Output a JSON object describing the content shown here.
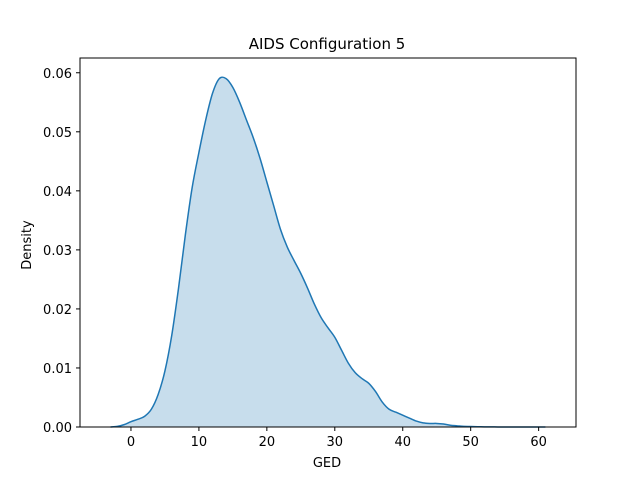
{
  "chart_data": {
    "type": "area",
    "title": "AIDS Configuration 5",
    "xlabel": "GED",
    "ylabel": "Density",
    "xlim": [
      -7.5,
      65.5
    ],
    "ylim": [
      0,
      0.0625
    ],
    "xticks": [
      0,
      10,
      20,
      30,
      40,
      50,
      60
    ],
    "yticks": [
      0.0,
      0.01,
      0.02,
      0.03,
      0.04,
      0.05,
      0.06
    ],
    "xtick_labels": [
      "0",
      "10",
      "20",
      "30",
      "40",
      "50",
      "60"
    ],
    "ytick_labels": [
      "0.00",
      "0.01",
      "0.02",
      "0.03",
      "0.04",
      "0.05",
      "0.06"
    ],
    "grid": false,
    "legend": false,
    "colors": {
      "line": "#1f77b4",
      "fill": "#1f77b4",
      "fill_opacity": 0.25
    },
    "series": [
      {
        "x": [
          -3,
          -2,
          -1,
          0,
          1,
          2,
          3,
          4,
          5,
          6,
          7,
          8,
          9,
          10,
          11,
          12,
          13,
          14,
          15,
          16,
          17,
          18,
          19,
          20,
          21,
          22,
          23,
          24,
          25,
          26,
          27,
          28,
          29,
          30,
          31,
          32,
          33,
          34,
          35,
          36,
          37,
          38,
          39,
          40,
          41,
          42,
          43,
          44,
          45,
          46,
          47,
          48,
          49,
          50,
          51,
          52,
          53,
          54,
          55,
          56,
          57,
          58,
          59,
          60,
          61
        ],
        "y": [
          0.0,
          0.0001,
          0.0004,
          0.0009,
          0.0013,
          0.0018,
          0.003,
          0.0055,
          0.0095,
          0.0155,
          0.0235,
          0.0325,
          0.0405,
          0.0465,
          0.052,
          0.0565,
          0.059,
          0.059,
          0.0575,
          0.055,
          0.052,
          0.049,
          0.0455,
          0.0415,
          0.0375,
          0.0335,
          0.0305,
          0.0282,
          0.026,
          0.0235,
          0.0208,
          0.0185,
          0.0168,
          0.0152,
          0.013,
          0.0108,
          0.0092,
          0.0082,
          0.0074,
          0.006,
          0.0042,
          0.003,
          0.0025,
          0.002,
          0.0015,
          0.001,
          0.0007,
          0.0006,
          0.0006,
          0.0005,
          0.0003,
          0.0002,
          0.0001,
          8e-05,
          5e-05,
          3e-05,
          2e-05,
          1e-05,
          1e-05,
          0.0,
          0.0,
          0.0,
          0.0,
          0.0,
          0.0
        ]
      }
    ]
  }
}
